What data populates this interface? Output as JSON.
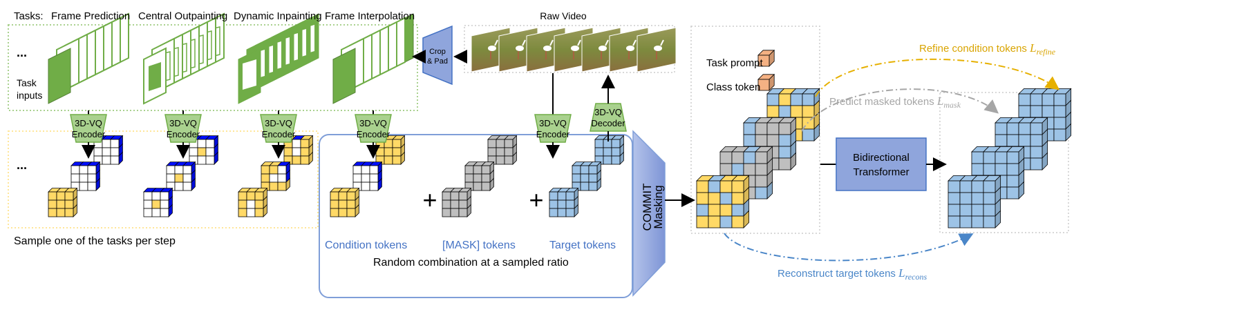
{
  "tasks_label": "Tasks:",
  "tasks": [
    "Frame Prediction",
    "Central Outpainting",
    "Dynamic Inpainting",
    "Frame Interpolation"
  ],
  "ellipsis": "...",
  "task_inputs": [
    "Task",
    "inputs"
  ],
  "encoder": [
    "3D-VQ",
    "Encoder"
  ],
  "decoder": [
    "3D-VQ",
    "Decoder"
  ],
  "crop_pad": [
    "Crop",
    "& Pad"
  ],
  "raw_video": "Raw Video",
  "sample_text": "Sample one of the tasks per step",
  "condition_tokens": "Condition tokens",
  "mask_tokens": "[MASK] tokens",
  "target_tokens": "Target tokens",
  "plus": "+",
  "random_combination": "Random combination at a sampled ratio",
  "commit_masking": [
    "COMMIT",
    "Masking"
  ],
  "task_prompt": "Task prompt",
  "class_token": "Class token",
  "transformer": [
    "Bidirectional",
    "Transformer"
  ],
  "refine_label": "Refine condition tokens ",
  "refine_loss": "L",
  "refine_sub": "refine",
  "mask_label": "Predict masked tokens ",
  "mask_loss": "L",
  "mask_sub": "mask",
  "recons_label": "Reconstruct target tokens ",
  "recons_loss": "L",
  "recons_sub": "recons",
  "colors": {
    "green": "#70AD47",
    "light_green": "#A9D18E",
    "yellow": "#FFD966",
    "blue": "#9DC3E6",
    "gray": "#BFBFBF",
    "orange": "#F4B183",
    "refine": "#D9A400",
    "mask": "#A6A6A6",
    "recons": "#4A86C8",
    "transformer_fill": "#8FA5DC",
    "box_blue": "#7F9ED8"
  }
}
